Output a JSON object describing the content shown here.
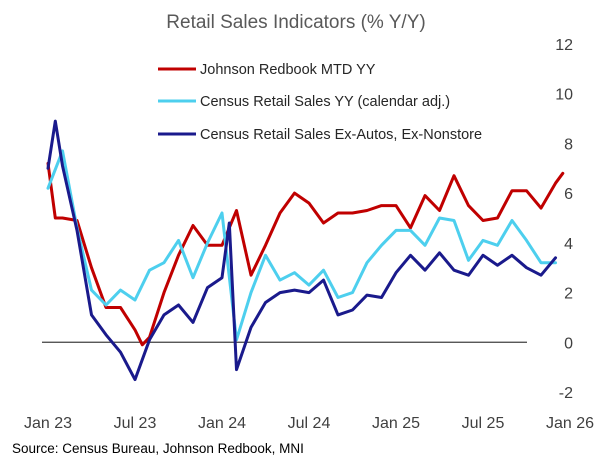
{
  "chart_data": {
    "type": "line",
    "title": "Retail Sales Indicators (% Y/Y)",
    "source": "Source: Census Bureau, Johnson Redbook, MNI",
    "x_tick_labels": [
      "Jan 23",
      "Jul 23",
      "Jan 24",
      "Jul 24",
      "Jan 25",
      "Jul 25",
      "Jan 26"
    ],
    "x_tick_months": [
      0,
      6,
      12,
      18,
      24,
      30,
      36
    ],
    "ylim": [
      -2,
      12
    ],
    "y_ticks": [
      -2,
      0,
      2,
      4,
      6,
      8,
      10,
      12
    ],
    "legend_position": "top-center",
    "grid": false,
    "series": [
      {
        "name": "Johnson Redbook MTD YY",
        "color": "#c00000",
        "x": [
          0,
          0.5,
          1,
          2,
          3,
          4,
          5,
          6,
          6.5,
          7,
          8,
          9,
          10,
          11,
          12,
          13,
          14,
          15,
          16,
          17,
          18,
          19,
          20,
          21,
          22,
          23,
          24,
          25,
          26,
          27,
          28,
          29,
          30,
          31,
          32,
          33,
          34,
          35,
          35.5
        ],
        "values": [
          7.2,
          5.0,
          5.0,
          4.9,
          3.0,
          1.4,
          1.4,
          0.5,
          -0.1,
          0.2,
          2.0,
          3.5,
          4.7,
          3.9,
          3.9,
          5.3,
          2.7,
          3.9,
          5.2,
          6.0,
          5.6,
          4.8,
          5.2,
          5.2,
          5.3,
          5.5,
          5.5,
          4.6,
          5.9,
          5.3,
          6.7,
          5.5,
          4.9,
          5.0,
          6.1,
          6.1,
          5.4,
          6.4,
          6.8
        ]
      },
      {
        "name": "Census Retail Sales YY (calendar adj.)",
        "color": "#4dcfee",
        "x": [
          0,
          1,
          2,
          3,
          4,
          5,
          6,
          7,
          8,
          9,
          10,
          11,
          12,
          13,
          14,
          15,
          16,
          17,
          18,
          19,
          20,
          21,
          22,
          23,
          24,
          25,
          26,
          27,
          28,
          29,
          30,
          31,
          32,
          33,
          34,
          35
        ],
        "values": [
          6.2,
          7.7,
          4.6,
          2.1,
          1.5,
          2.1,
          1.7,
          2.9,
          3.2,
          4.1,
          2.6,
          4.0,
          5.2,
          0.1,
          2.0,
          3.5,
          2.5,
          2.8,
          2.3,
          2.9,
          1.8,
          2.0,
          3.2,
          3.9,
          4.5,
          4.5,
          3.9,
          5.0,
          4.9,
          3.3,
          4.1,
          3.9,
          4.9,
          4.1,
          3.2,
          3.2
        ]
      },
      {
        "name": "Census Retail Sales Ex-Autos, Ex-Nonstore",
        "color": "#1a1a8c",
        "x": [
          0,
          0.5,
          1,
          2,
          3,
          4,
          5,
          6,
          7,
          8,
          9,
          10,
          11,
          12,
          12.5,
          13,
          14,
          15,
          16,
          17,
          18,
          19,
          20,
          21,
          22,
          23,
          24,
          25,
          26,
          27,
          28,
          29,
          30,
          31,
          32,
          33,
          34,
          35
        ],
        "values": [
          7.0,
          8.9,
          7.1,
          4.5,
          1.1,
          0.3,
          -0.4,
          -1.5,
          0.1,
          1.1,
          1.5,
          0.8,
          2.2,
          2.6,
          4.8,
          -1.1,
          0.6,
          1.6,
          2.0,
          2.1,
          2.0,
          2.5,
          1.1,
          1.3,
          1.9,
          1.8,
          2.8,
          3.5,
          2.9,
          3.6,
          2.9,
          2.7,
          3.5,
          3.1,
          3.5,
          3.0,
          2.7,
          3.4
        ]
      }
    ]
  }
}
